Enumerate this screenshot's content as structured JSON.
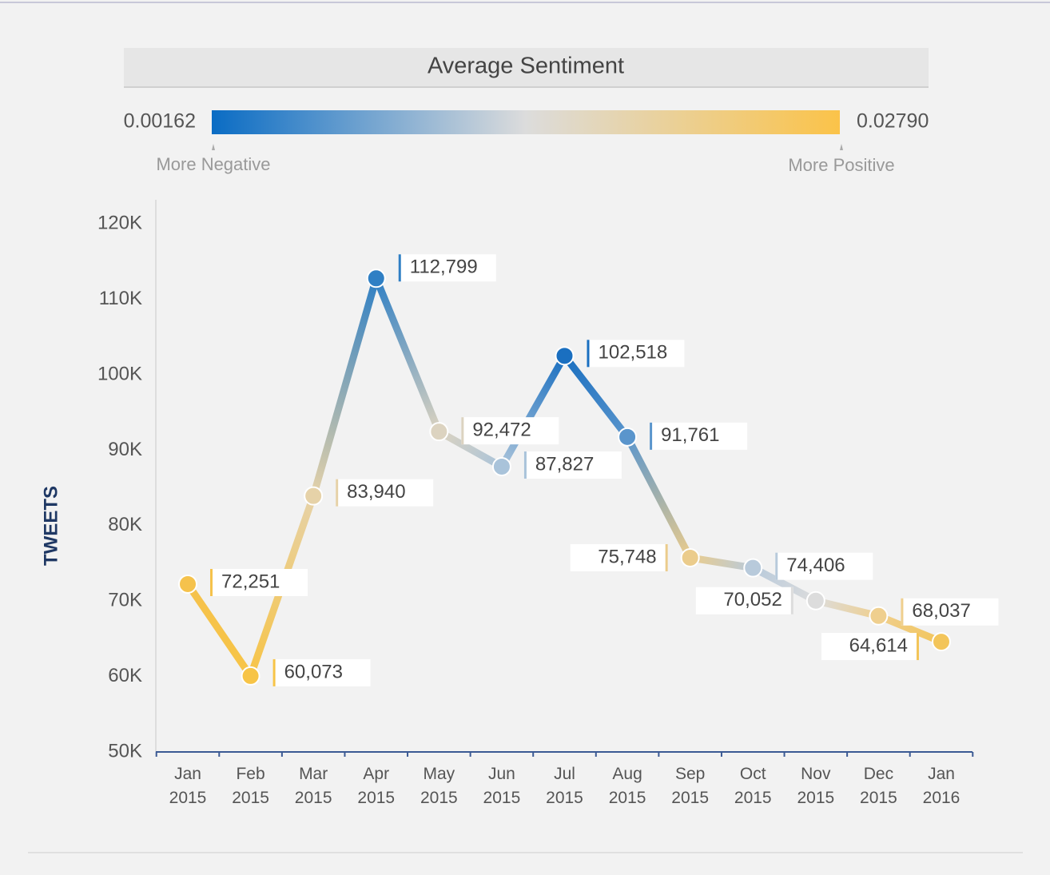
{
  "chart_data": {
    "type": "line",
    "legend_title": "Average Sentiment",
    "colorscale": [
      "#0a6cc4",
      "#dcdcdc",
      "#fbc349"
    ],
    "color_min": {
      "value": 0.00162,
      "label": "0.00162"
    },
    "color_max": {
      "value": 0.0279,
      "label": "0.02790"
    },
    "color_min_label": "More Negative",
    "color_max_label": "More Positive",
    "y_label": "TWEETS",
    "categories": [
      "Jan 2015",
      "Feb 2015",
      "Mar 2015",
      "Apr 2015",
      "May 2015",
      "Jun 2015",
      "Jul 2015",
      "Aug 2015",
      "Sep 2015",
      "Oct 2015",
      "Nov 2015",
      "Dec 2015",
      "Jan 2016"
    ],
    "values": [
      72251,
      60073,
      83940,
      112799,
      92472,
      87827,
      102518,
      91761,
      75748,
      74406,
      70052,
      68037,
      64614
    ],
    "value_labels": [
      "72,251",
      "60,073",
      "83,940",
      "112,799",
      "92,472",
      "87,827",
      "102,518",
      "91,761",
      "75,748",
      "74,406",
      "70,052",
      "68,037",
      "64,614"
    ],
    "point_colors": [
      "#f5c24c",
      "#f7c447",
      "#e6d2a8",
      "#2f7fc4",
      "#dcd3c0",
      "#a9c3da",
      "#1a6fc0",
      "#5a95cc",
      "#ebcc8c",
      "#b8cadb",
      "#dcdcdc",
      "#efcf8e",
      "#f3c55a"
    ],
    "ylim": [
      50000,
      123000
    ],
    "yticks": [
      {
        "value": 50000,
        "label": "50K"
      },
      {
        "value": 60000,
        "label": "60K"
      },
      {
        "value": 70000,
        "label": "70K"
      },
      {
        "value": 80000,
        "label": "80K"
      },
      {
        "value": 90000,
        "label": "90K"
      },
      {
        "value": 100000,
        "label": "100K"
      },
      {
        "value": 110000,
        "label": "110K"
      },
      {
        "value": 120000,
        "label": "120K"
      }
    ]
  }
}
